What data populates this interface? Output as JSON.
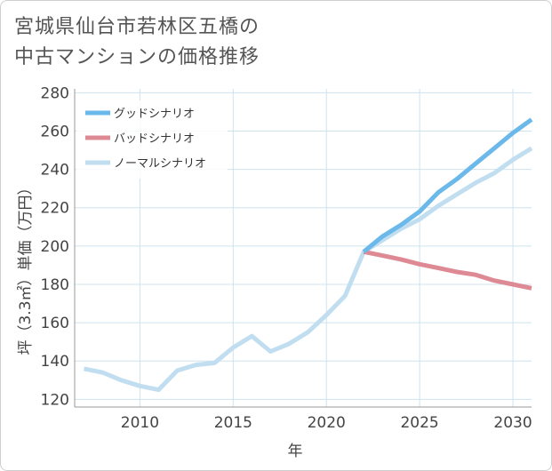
{
  "title_lines": [
    "宮城県仙台市若林区五橋の",
    "中古マンションの価格推移"
  ],
  "colors": {
    "good": "#6bb8ea",
    "bad": "#de8a94",
    "normal": "#c0def0",
    "grid": "#cfe3ee",
    "axis": "#999999"
  },
  "chart_data": {
    "type": "line",
    "title": "宮城県仙台市若林区五橋の中古マンションの価格推移",
    "xlabel": "年",
    "ylabel": "坪（3.3㎡）単価（万円）",
    "xlim": [
      2006.5,
      2031
    ],
    "ylim": [
      116,
      282
    ],
    "xticks": [
      2010,
      2015,
      2020,
      2025,
      2030
    ],
    "yticks": [
      120,
      140,
      160,
      180,
      200,
      220,
      240,
      260,
      280
    ],
    "grid": true,
    "legend_position": "top-left",
    "series": [
      {
        "name": "グッドシナリオ",
        "color_key": "good",
        "x": [
          2022,
          2023,
          2024,
          2025,
          2026,
          2027,
          2028,
          2029,
          2030,
          2031
        ],
        "y": [
          197,
          205,
          211,
          218,
          228,
          235,
          243,
          251,
          259,
          266
        ]
      },
      {
        "name": "バッドシナリオ",
        "color_key": "bad",
        "x": [
          2022,
          2023,
          2024,
          2025,
          2026,
          2027,
          2028,
          2029,
          2030,
          2031
        ],
        "y": [
          197,
          195,
          193,
          190.5,
          188.5,
          186.5,
          185,
          182,
          180,
          178
        ]
      },
      {
        "name": "ノーマルシナリオ",
        "color_key": "normal",
        "x": [
          2007,
          2008,
          2009,
          2010,
          2011,
          2012,
          2013,
          2014,
          2015,
          2016,
          2017,
          2018,
          2019,
          2020,
          2021,
          2022,
          2023,
          2024,
          2025,
          2026,
          2027,
          2028,
          2029,
          2030,
          2031
        ],
        "y": [
          136,
          134,
          130,
          127,
          125,
          135,
          138,
          139,
          147,
          153,
          145,
          149,
          155,
          164,
          174,
          197,
          203,
          209,
          214,
          221,
          227,
          233,
          238,
          245,
          251
        ]
      }
    ]
  }
}
